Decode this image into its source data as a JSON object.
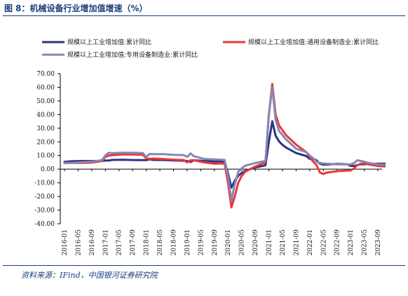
{
  "figure": {
    "title": "图 8：机械设备行业增加值增速（%）",
    "source": "资料来源：IFind，中国银河证券研究院"
  },
  "chart_data": {
    "type": "line",
    "ylim": [
      -40,
      70
    ],
    "yticks": [
      "70.00",
      "60.00",
      "50.00",
      "40.00",
      "30.00",
      "20.00",
      "10.00",
      "0.00",
      "-10.00",
      "-20.00",
      "-30.00",
      "-40.00"
    ],
    "xticks": [
      "2016-01",
      "2016-05",
      "2016-09",
      "2017-01",
      "2017-05",
      "2017-09",
      "2018-01",
      "2018-05",
      "2018-09",
      "2019-01",
      "2019-05",
      "2019-09",
      "2020-01",
      "2020-05",
      "2020-09",
      "2021-01",
      "2021-05",
      "2021-09",
      "2022-01",
      "2022-05",
      "2022-09",
      "2023-01",
      "2023-05",
      "2023-09"
    ],
    "legend_position": "top",
    "grid": false,
    "series": [
      {
        "name": "规模以上工业增加值:累计同比",
        "color": "#2b3580",
        "points": [
          [
            "2016-01",
            5.4
          ],
          [
            "2016-03",
            5.8
          ],
          [
            "2016-06",
            6.0
          ],
          [
            "2016-09",
            6.0
          ],
          [
            "2016-12",
            6.0
          ],
          [
            "2017-01",
            6.3
          ],
          [
            "2017-02",
            6.3
          ],
          [
            "2017-03",
            6.8
          ],
          [
            "2017-06",
            6.9
          ],
          [
            "2017-09",
            6.7
          ],
          [
            "2017-12",
            6.6
          ],
          [
            "2018-01",
            6.6
          ],
          [
            "2018-02",
            7.2
          ],
          [
            "2018-03",
            6.8
          ],
          [
            "2018-06",
            6.7
          ],
          [
            "2018-09",
            6.4
          ],
          [
            "2018-12",
            6.2
          ],
          [
            "2019-01",
            6.0
          ],
          [
            "2019-02",
            5.3
          ],
          [
            "2019-03",
            6.5
          ],
          [
            "2019-06",
            6.0
          ],
          [
            "2019-09",
            5.6
          ],
          [
            "2019-12",
            5.7
          ],
          [
            "2020-01",
            -3.0
          ],
          [
            "2020-02",
            -13.5
          ],
          [
            "2020-03",
            -8.4
          ],
          [
            "2020-04",
            -4.9
          ],
          [
            "2020-05",
            -2.8
          ],
          [
            "2020-06",
            -1.3
          ],
          [
            "2020-09",
            1.2
          ],
          [
            "2020-12",
            2.8
          ],
          [
            "2021-01",
            20.0
          ],
          [
            "2021-02",
            35.1
          ],
          [
            "2021-03",
            24.5
          ],
          [
            "2021-04",
            20.3
          ],
          [
            "2021-05",
            17.8
          ],
          [
            "2021-06",
            15.9
          ],
          [
            "2021-09",
            11.8
          ],
          [
            "2021-12",
            9.6
          ],
          [
            "2022-01",
            7.5
          ],
          [
            "2022-02",
            7.5
          ],
          [
            "2022-03",
            6.5
          ],
          [
            "2022-04",
            4.0
          ],
          [
            "2022-05",
            3.3
          ],
          [
            "2022-06",
            3.4
          ],
          [
            "2022-09",
            3.9
          ],
          [
            "2022-12",
            3.6
          ],
          [
            "2023-01",
            2.4
          ],
          [
            "2023-02",
            2.4
          ],
          [
            "2023-03",
            3.0
          ],
          [
            "2023-04",
            3.6
          ],
          [
            "2023-05",
            3.6
          ],
          [
            "2023-06",
            3.8
          ],
          [
            "2023-09",
            4.0
          ],
          [
            "2023-11",
            4.0
          ]
        ]
      },
      {
        "name": "规模以上工业增加值:通用设备制造业:累计同比",
        "color": "#e8383a",
        "points": [
          [
            "2016-01",
            4.5
          ],
          [
            "2016-03",
            4.6
          ],
          [
            "2016-06",
            4.6
          ],
          [
            "2016-09",
            4.8
          ],
          [
            "2016-12",
            5.9
          ],
          [
            "2017-01",
            9.0
          ],
          [
            "2017-02",
            10.0
          ],
          [
            "2017-03",
            10.2
          ],
          [
            "2017-06",
            10.8
          ],
          [
            "2017-09",
            10.8
          ],
          [
            "2017-12",
            10.5
          ],
          [
            "2018-01",
            8.0
          ],
          [
            "2018-02",
            7.5
          ],
          [
            "2018-03",
            7.8
          ],
          [
            "2018-06",
            7.4
          ],
          [
            "2018-09",
            7.0
          ],
          [
            "2018-12",
            6.7
          ],
          [
            "2019-01",
            5.0
          ],
          [
            "2019-02",
            6.5
          ],
          [
            "2019-03",
            6.5
          ],
          [
            "2019-06",
            5.0
          ],
          [
            "2019-09",
            4.0
          ],
          [
            "2019-12",
            4.2
          ],
          [
            "2020-01",
            -10.0
          ],
          [
            "2020-02",
            -28.0
          ],
          [
            "2020-03",
            -20.0
          ],
          [
            "2020-04",
            -10.0
          ],
          [
            "2020-05",
            -5.0
          ],
          [
            "2020-06",
            -2.0
          ],
          [
            "2020-09",
            2.0
          ],
          [
            "2020-12",
            5.0
          ],
          [
            "2021-01",
            40.0
          ],
          [
            "2021-02",
            62.5
          ],
          [
            "2021-03",
            40.0
          ],
          [
            "2021-04",
            32.0
          ],
          [
            "2021-05",
            28.5
          ],
          [
            "2021-06",
            25.0
          ],
          [
            "2021-09",
            18.0
          ],
          [
            "2021-12",
            12.5
          ],
          [
            "2022-01",
            9.0
          ],
          [
            "2022-02",
            5.5
          ],
          [
            "2022-03",
            3.0
          ],
          [
            "2022-04",
            -2.5
          ],
          [
            "2022-05",
            -3.5
          ],
          [
            "2022-06",
            -2.5
          ],
          [
            "2022-09",
            -1.5
          ],
          [
            "2022-12",
            -1.0
          ],
          [
            "2023-01",
            -1.0
          ],
          [
            "2023-02",
            0.5
          ],
          [
            "2023-03",
            3.0
          ],
          [
            "2023-04",
            4.0
          ],
          [
            "2023-05",
            4.2
          ],
          [
            "2023-06",
            3.6
          ],
          [
            "2023-09",
            2.3
          ],
          [
            "2023-11",
            2.0
          ]
        ]
      },
      {
        "name": "规模以上工业增加值:专用设备制造业:累计同比",
        "color": "#8686b5",
        "points": [
          [
            "2016-01",
            4.4
          ],
          [
            "2016-03",
            4.6
          ],
          [
            "2016-06",
            5.1
          ],
          [
            "2016-09",
            5.6
          ],
          [
            "2016-12",
            6.5
          ],
          [
            "2017-01",
            10.0
          ],
          [
            "2017-02",
            12.0
          ],
          [
            "2017-03",
            11.7
          ],
          [
            "2017-06",
            12.0
          ],
          [
            "2017-09",
            12.0
          ],
          [
            "2017-12",
            11.8
          ],
          [
            "2018-01",
            9.0
          ],
          [
            "2018-02",
            11.2
          ],
          [
            "2018-03",
            11.0
          ],
          [
            "2018-06",
            11.0
          ],
          [
            "2018-09",
            10.5
          ],
          [
            "2018-12",
            10.3
          ],
          [
            "2019-01",
            9.0
          ],
          [
            "2019-02",
            11.5
          ],
          [
            "2019-03",
            9.5
          ],
          [
            "2019-06",
            7.5
          ],
          [
            "2019-09",
            7.2
          ],
          [
            "2019-12",
            6.8
          ],
          [
            "2020-01",
            -5.0
          ],
          [
            "2020-02",
            -23.0
          ],
          [
            "2020-03",
            -11.0
          ],
          [
            "2020-04",
            -2.0
          ],
          [
            "2020-05",
            0.5
          ],
          [
            "2020-06",
            2.5
          ],
          [
            "2020-09",
            4.5
          ],
          [
            "2020-12",
            6.0
          ],
          [
            "2021-01",
            40.0
          ],
          [
            "2021-02",
            60.0
          ],
          [
            "2021-03",
            36.0
          ],
          [
            "2021-04",
            28.0
          ],
          [
            "2021-05",
            25.0
          ],
          [
            "2021-06",
            22.0
          ],
          [
            "2021-09",
            15.0
          ],
          [
            "2021-12",
            12.5
          ],
          [
            "2022-01",
            10.0
          ],
          [
            "2022-02",
            8.0
          ],
          [
            "2022-03",
            5.5
          ],
          [
            "2022-04",
            4.5
          ],
          [
            "2022-05",
            4.2
          ],
          [
            "2022-06",
            4.0
          ],
          [
            "2022-09",
            3.6
          ],
          [
            "2022-12",
            3.5
          ],
          [
            "2023-01",
            3.5
          ],
          [
            "2023-02",
            4.5
          ],
          [
            "2023-03",
            6.5
          ],
          [
            "2023-04",
            6.0
          ],
          [
            "2023-05",
            5.5
          ],
          [
            "2023-06",
            4.7
          ],
          [
            "2023-09",
            3.5
          ],
          [
            "2023-11",
            3.2
          ]
        ]
      }
    ]
  }
}
